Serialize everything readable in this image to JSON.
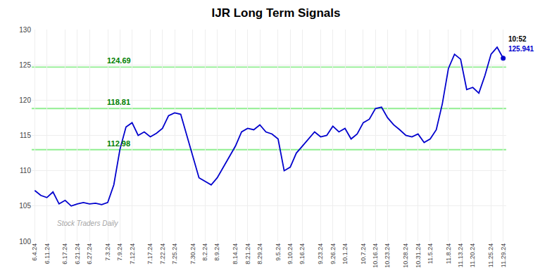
{
  "chart_data": {
    "type": "line",
    "title": "IJR Long Term Signals",
    "categories": [
      "6.4.24",
      null,
      "6.11.24",
      null,
      null,
      "6.17.24",
      null,
      "6.21.24",
      null,
      "6.27.24",
      null,
      null,
      "7.3.24",
      null,
      "7.9.24",
      null,
      "7.12.24",
      null,
      null,
      "7.17.24",
      null,
      "7.22.24",
      null,
      "7.25.24",
      null,
      null,
      "7.30.24",
      null,
      "8.2.24",
      null,
      "8.9.24",
      null,
      null,
      "8.14.24",
      null,
      "8.21.24",
      null,
      "8.29.24",
      null,
      null,
      "9.5.24",
      null,
      "9.10.24",
      null,
      "9.16.24",
      null,
      null,
      "9.23.24",
      null,
      "9.26.24",
      null,
      "10.1.24",
      null,
      null,
      "10.7.24",
      null,
      "10.16.24",
      null,
      "10.23.24",
      null,
      null,
      "10.28.24",
      null,
      "10.31.24",
      null,
      "11.5.24",
      null,
      null,
      "11.8.24",
      null,
      "11.13.24",
      null,
      "11.20.24",
      null,
      null,
      "11.25.24",
      null,
      "11.29.24"
    ],
    "values": [
      107.2,
      106.5,
      106.2,
      107.0,
      105.3,
      105.8,
      105.0,
      105.3,
      105.5,
      105.3,
      105.4,
      105.2,
      105.5,
      108.0,
      113.0,
      116.2,
      116.8,
      115.0,
      115.5,
      114.8,
      115.3,
      116.0,
      117.8,
      118.2,
      118.0,
      115.0,
      112.0,
      109.0,
      108.5,
      108.0,
      109.0,
      110.5,
      112.0,
      113.5,
      115.5,
      116.0,
      115.8,
      116.5,
      115.5,
      115.2,
      114.5,
      110.0,
      110.5,
      112.5,
      113.5,
      114.5,
      115.5,
      114.8,
      115.0,
      116.3,
      115.5,
      116.0,
      114.5,
      115.2,
      116.8,
      117.3,
      118.8,
      119.0,
      117.5,
      116.5,
      115.8,
      115.0,
      114.8,
      115.2,
      114.0,
      114.5,
      115.8,
      119.5,
      124.5,
      126.5,
      125.8,
      121.5,
      121.8,
      121.0,
      123.5,
      126.5,
      127.5,
      125.941
    ],
    "color": "#0000CD",
    "ylim": [
      100,
      130
    ],
    "yticks": [
      100,
      105,
      110,
      115,
      120,
      125,
      130
    ],
    "grid": true,
    "hlines": [
      {
        "value": 112.98,
        "label": "112.98",
        "color": "#90EE90"
      },
      {
        "value": 118.81,
        "label": "118.81",
        "color": "#90EE90"
      },
      {
        "value": 124.69,
        "label": "124.69",
        "color": "#90EE90"
      }
    ],
    "annotations": [
      "10:52",
      "125.941"
    ],
    "watermark": "Stock Traders Daily"
  }
}
